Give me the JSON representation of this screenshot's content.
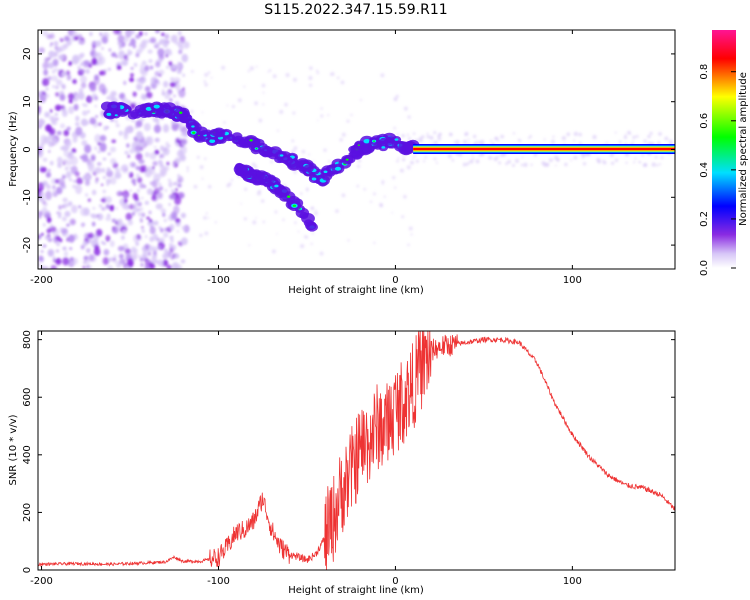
{
  "title": "S115.2022.347.15.59.R11",
  "colors": {
    "snr_line": "#ee3333",
    "noise_scatter": "#b58cf0",
    "echo_track": "#5a10e0",
    "colormap": [
      "#ffffff",
      "#d7c6f7",
      "#8a2be2",
      "#0000ff",
      "#00dfff",
      "#00ff00",
      "#ffff00",
      "#ff0000",
      "#ff1493"
    ]
  },
  "chart_data": [
    {
      "type": "heatmap",
      "xlabel": "Height of straight line (km)",
      "ylabel": "Frequency (Hz)",
      "xlim": [
        -202,
        158
      ],
      "ylim": [
        -25,
        25
      ],
      "xticks": [
        {
          "value": -200,
          "label": "-200"
        },
        {
          "value": -100,
          "label": "-100"
        },
        {
          "value": 0,
          "label": "0"
        },
        {
          "value": 100,
          "label": "100"
        }
      ],
      "yticks": [
        {
          "value": -20,
          "label": "-20"
        },
        {
          "value": -10,
          "label": "-10"
        },
        {
          "value": 0,
          "label": "0"
        },
        {
          "value": 10,
          "label": "10"
        },
        {
          "value": 20,
          "label": "20"
        }
      ],
      "grid": false,
      "colorbar": {
        "label": "Normalized spectral amplitude",
        "range": [
          0,
          0.97
        ],
        "ticks": [
          {
            "value": 0.0,
            "label": "0.0"
          },
          {
            "value": 0.2,
            "label": "0.2"
          },
          {
            "value": 0.4,
            "label": "0.4"
          },
          {
            "value": 0.6,
            "label": "0.6"
          },
          {
            "value": 0.8,
            "label": "0.8"
          }
        ]
      },
      "features": {
        "noise_region_x": [
          -202,
          -118
        ],
        "main_track": [
          {
            "x": -165,
            "y": 8.2
          },
          {
            "x": -150,
            "y": 8.0
          },
          {
            "x": -135,
            "y": 8.2
          },
          {
            "x": -120,
            "y": 7.5
          },
          {
            "x": -112,
            "y": 3.0
          },
          {
            "x": -100,
            "y": 2.6
          },
          {
            "x": -90,
            "y": 2.2
          },
          {
            "x": -80,
            "y": 1.0
          },
          {
            "x": -70,
            "y": -0.5
          },
          {
            "x": -60,
            "y": -1.8
          },
          {
            "x": -50,
            "y": -4.0
          },
          {
            "x": -42,
            "y": -6.5
          },
          {
            "x": -35,
            "y": -4.0
          },
          {
            "x": -25,
            "y": -1.0
          },
          {
            "x": -18,
            "y": 0.6
          },
          {
            "x": -10,
            "y": 1.2
          },
          {
            "x": 0,
            "y": 1.6
          },
          {
            "x": 8,
            "y": 0.4
          },
          {
            "x": 20,
            "y": 0.1
          },
          {
            "x": 60,
            "y": 0.1
          },
          {
            "x": 100,
            "y": 0.1
          },
          {
            "x": 158,
            "y": 0.1
          }
        ],
        "branch_track": [
          {
            "x": -90,
            "y": -3.5
          },
          {
            "x": -80,
            "y": -5.5
          },
          {
            "x": -70,
            "y": -7.0
          },
          {
            "x": -62,
            "y": -9.5
          },
          {
            "x": -55,
            "y": -12.0
          },
          {
            "x": -47,
            "y": -16.0
          }
        ],
        "steady_line": {
          "x_start": 10,
          "x_end": 158,
          "y": 0.1,
          "amplitude": 0.95
        }
      }
    },
    {
      "type": "line",
      "xlabel": "Height of straight line (km)",
      "ylabel": "SNR (10 * v/v)",
      "xlim": [
        -202,
        158
      ],
      "ylim": [
        0,
        830
      ],
      "xticks": [
        {
          "value": -200,
          "label": "-200"
        },
        {
          "value": -100,
          "label": "-100"
        },
        {
          "value": 0,
          "label": "0"
        },
        {
          "value": 100,
          "label": "100"
        }
      ],
      "yticks": [
        {
          "value": 0,
          "label": "0"
        },
        {
          "value": 200,
          "label": "200"
        },
        {
          "value": 400,
          "label": "400"
        },
        {
          "value": 600,
          "label": "600"
        },
        {
          "value": 800,
          "label": "800"
        }
      ],
      "grid": false,
      "series": [
        {
          "x": [
            -202,
            -180,
            -160,
            -140,
            -130,
            -125,
            -120,
            -110,
            -100,
            -95,
            -90,
            -85,
            -80,
            -75,
            -70,
            -65,
            -60,
            -50,
            -45,
            -40,
            -35,
            -30,
            -25,
            -20,
            -15,
            -10,
            -5,
            0,
            5,
            10,
            15,
            20,
            25,
            30,
            40,
            50,
            60,
            70,
            80,
            90,
            100,
            110,
            120,
            130,
            140,
            150,
            158
          ],
          "y": [
            20,
            22,
            20,
            25,
            28,
            45,
            30,
            30,
            45,
            80,
            130,
            140,
            170,
            250,
            140,
            80,
            55,
            35,
            55,
            110,
            180,
            280,
            340,
            420,
            450,
            500,
            500,
            560,
            590,
            640,
            710,
            760,
            775,
            780,
            790,
            800,
            800,
            790,
            720,
            580,
            470,
            390,
            330,
            295,
            285,
            260,
            210
          ]
        }
      ]
    }
  ]
}
